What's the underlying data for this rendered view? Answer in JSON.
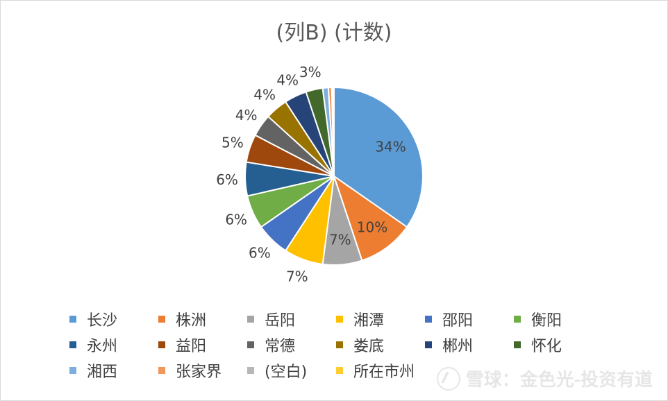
{
  "chart_data": {
    "type": "pie",
    "title": "(列B) (计数)",
    "categories": [
      "长沙",
      "株洲",
      "岳阳",
      "湘潭",
      "邵阳",
      "衡阳",
      "永州",
      "益阳",
      "常德",
      "娄底",
      "郴州",
      "怀化",
      "湘西",
      "张家界",
      "(空白)",
      "所在市州"
    ],
    "values": [
      34,
      10,
      7,
      7,
      6,
      6,
      6,
      5,
      4,
      4,
      4,
      3,
      1,
      0.6,
      0.2,
      0.2
    ],
    "data_labels": [
      "34%",
      "10%",
      "7%",
      "7%",
      "6%",
      "6%",
      "6%",
      "5%",
      "4%",
      "4%",
      "4%",
      "3%",
      "",
      "",
      "",
      ""
    ],
    "colors": [
      "#5b9bd5",
      "#ed7d31",
      "#a5a5a5",
      "#ffc000",
      "#4472c4",
      "#70ad47",
      "#255e91",
      "#9e480e",
      "#636363",
      "#997300",
      "#264478",
      "#43682b",
      "#7cafdd",
      "#f1975a",
      "#b7b7b7",
      "#ffcd33"
    ],
    "label_colors": [
      "#404040",
      "#404040",
      "#404040",
      "#404040",
      "#404040",
      "#404040",
      "#404040",
      "#404040",
      "#404040",
      "#404040",
      "#404040",
      "#404040",
      "#404040",
      "#404040",
      "#404040",
      "#404040"
    ],
    "legend_position": "bottom"
  },
  "watermark": {
    "text": "雪球：金色光-投资有道"
  }
}
